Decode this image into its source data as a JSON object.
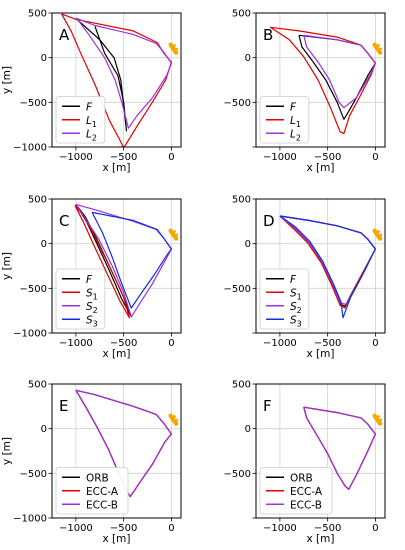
{
  "figure": {
    "colors": {
      "black": "#000000",
      "red": "#e00000",
      "purple": "#a030e0",
      "blue": "#1030e0",
      "orange": "#f5a800"
    }
  },
  "chart_data": [
    {
      "panel": "A",
      "type": "line",
      "xlabel": "x [m]",
      "ylabel": "y [m]",
      "xlim": [
        -1250,
        100
      ],
      "ylim": [
        -1000,
        500
      ],
      "xticks": [
        -1000,
        -500,
        0
      ],
      "xticklabels": [
        "−1000",
        "−500",
        "0"
      ],
      "yticks": [
        -1000,
        -500,
        0,
        500
      ],
      "yticklabels": [
        "−1000",
        "−500",
        "0",
        "500"
      ],
      "grid": true,
      "legend_position": "lower-left",
      "y_label_shown": true,
      "series": [
        {
          "name": "F",
          "color": "#000000",
          "label_base": "F",
          "label_sub": "",
          "x": [
            -1000,
            -750,
            -600,
            -530,
            -470,
            -500,
            -560,
            -700,
            -800
          ],
          "y": [
            440,
            200,
            0,
            -250,
            -820,
            -500,
            -200,
            50,
            350
          ]
        },
        {
          "name": "L1",
          "color": "#e00000",
          "label_base": "L",
          "label_sub": "1",
          "x": [
            -1150,
            -1050,
            -950,
            -800,
            -650,
            -540,
            -500,
            -350,
            -200,
            -60,
            0,
            -80,
            -150,
            -400,
            -1000,
            -1150
          ],
          "y": [
            490,
            300,
            50,
            -300,
            -700,
            -920,
            -1010,
            -750,
            -500,
            -250,
            -50,
            50,
            170,
            300,
            430,
            490
          ]
        },
        {
          "name": "L2",
          "color": "#a030e0",
          "label_base": "L",
          "label_sub": "2",
          "x": [
            -990,
            -860,
            -700,
            -590,
            -520,
            -450,
            -360,
            -200,
            -50,
            0,
            -80,
            -160,
            -400,
            -800,
            -990
          ],
          "y": [
            440,
            250,
            0,
            -250,
            -500,
            -790,
            -650,
            -450,
            -200,
            -60,
            60,
            160,
            260,
            360,
            440
          ]
        }
      ],
      "marker": "orange ship icon near (0, 0)"
    },
    {
      "panel": "B",
      "type": "line",
      "xlabel": "x [m]",
      "ylabel": "",
      "xlim": [
        -1250,
        100
      ],
      "ylim": [
        -1000,
        500
      ],
      "xticks": [
        -1000,
        -500,
        0
      ],
      "xticklabels": [
        "−1000",
        "−500",
        "0"
      ],
      "yticks": [
        -1000,
        -500,
        0,
        500
      ],
      "yticklabels": [
        "",
        "−500",
        "0",
        "500"
      ],
      "grid": true,
      "legend_position": "lower-left",
      "y_label_shown": false,
      "series": [
        {
          "name": "F",
          "color": "#000000",
          "label_base": "F",
          "label_sub": "",
          "x": [
            -800,
            -770,
            -650,
            -520,
            -400,
            -330,
            -280,
            -200,
            -80,
            0,
            -80,
            -150,
            -400,
            -800
          ],
          "y": [
            250,
            120,
            -50,
            -250,
            -500,
            -690,
            -600,
            -450,
            -200,
            -60,
            50,
            140,
            200,
            250
          ]
        },
        {
          "name": "L1",
          "color": "#e00000",
          "label_base": "L",
          "label_sub": "1",
          "x": [
            -1100,
            -900,
            -750,
            -600,
            -470,
            -370,
            -330,
            -270,
            -170,
            -40,
            0,
            -80,
            -150,
            -400,
            -800,
            -1100
          ],
          "y": [
            340,
            200,
            10,
            -250,
            -560,
            -830,
            -850,
            -650,
            -450,
            -180,
            -60,
            50,
            140,
            230,
            300,
            340
          ]
        },
        {
          "name": "L2",
          "color": "#a030e0",
          "label_base": "L",
          "label_sub": "2",
          "x": [
            -750,
            -720,
            -600,
            -480,
            -380,
            -330,
            -200,
            -50,
            0,
            -80,
            -150,
            -400,
            -750
          ],
          "y": [
            250,
            120,
            -50,
            -250,
            -500,
            -560,
            -450,
            -180,
            -60,
            50,
            140,
            200,
            250
          ]
        }
      ],
      "marker": "orange ship icon near (0, 0)"
    },
    {
      "panel": "C",
      "type": "line",
      "xlabel": "x [m]",
      "ylabel": "y [m]",
      "xlim": [
        -1250,
        100
      ],
      "ylim": [
        -1000,
        500
      ],
      "xticks": [
        -1000,
        -500,
        0
      ],
      "xticklabels": [
        "−1000",
        "−500",
        "0"
      ],
      "yticks": [
        -1000,
        -500,
        0,
        500
      ],
      "yticklabels": [
        "−1000",
        "−500",
        "0",
        "500"
      ],
      "grid": true,
      "legend_position": "lower-left",
      "y_label_shown": true,
      "series": [
        {
          "name": "F",
          "color": "#000000",
          "label_base": "F",
          "label_sub": "",
          "x": [
            -1000,
            -890,
            -780,
            -650,
            -520,
            -420,
            -500,
            -650,
            -780,
            -900,
            -1000
          ],
          "y": [
            440,
            250,
            0,
            -300,
            -620,
            -820,
            -600,
            -250,
            50,
            300,
            440
          ]
        },
        {
          "name": "S1",
          "color": "#e00000",
          "label_base": "S",
          "label_sub": "1",
          "x": [
            -1010,
            -920,
            -810,
            -680,
            -540,
            -440,
            -500,
            -650,
            -790,
            -910,
            -1010
          ],
          "y": [
            430,
            240,
            -20,
            -320,
            -640,
            -830,
            -600,
            -250,
            50,
            300,
            430
          ]
        },
        {
          "name": "S2",
          "color": "#a030e0",
          "label_base": "S",
          "label_sub": "2",
          "x": [
            -1000,
            -900,
            -760,
            -620,
            -500,
            -420,
            -320,
            -200,
            -60,
            0,
            -80,
            -160,
            -400,
            -800,
            -1000
          ],
          "y": [
            440,
            280,
            50,
            -250,
            -550,
            -820,
            -650,
            -450,
            -180,
            -60,
            60,
            160,
            250,
            380,
            440
          ]
        },
        {
          "name": "S3",
          "color": "#1030e0",
          "label_base": "S",
          "label_sub": "3",
          "x": [
            -830,
            -720,
            -620,
            -520,
            -420,
            -300,
            -180,
            -50,
            0,
            -80,
            -150,
            -400,
            -830
          ],
          "y": [
            350,
            120,
            -150,
            -450,
            -720,
            -530,
            -350,
            -130,
            -60,
            60,
            160,
            260,
            350
          ]
        }
      ],
      "marker": "orange ship icon near (0, 0)"
    },
    {
      "panel": "D",
      "type": "line",
      "xlabel": "x [m]",
      "ylabel": "",
      "xlim": [
        -1250,
        100
      ],
      "ylim": [
        -1000,
        500
      ],
      "xticks": [
        -1000,
        -500,
        0
      ],
      "xticklabels": [
        "−1000",
        "−500",
        "0"
      ],
      "yticks": [
        -1000,
        -500,
        0,
        500
      ],
      "yticklabels": [
        "",
        "−500",
        "0",
        "500"
      ],
      "grid": true,
      "legend_position": "lower-left",
      "y_label_shown": false,
      "series": [
        {
          "name": "F",
          "color": "#000000",
          "label_base": "F",
          "label_sub": "",
          "x": [
            -1000,
            -850,
            -700,
            -560,
            -450,
            -360,
            -320,
            -220,
            -120,
            0,
            -80,
            -150,
            -400,
            -700,
            -1000
          ],
          "y": [
            310,
            180,
            20,
            -200,
            -450,
            -680,
            -700,
            -500,
            -300,
            -60,
            50,
            120,
            200,
            260,
            310
          ]
        },
        {
          "name": "S1",
          "color": "#e00000",
          "label_base": "S",
          "label_sub": "1",
          "x": [
            -1000,
            -860,
            -710,
            -570,
            -460,
            -370,
            -320,
            -220,
            -120,
            0,
            -80,
            -150,
            -400,
            -700,
            -1000
          ],
          "y": [
            310,
            170,
            10,
            -210,
            -460,
            -690,
            -720,
            -500,
            -300,
            -60,
            50,
            120,
            200,
            260,
            310
          ]
        },
        {
          "name": "S2",
          "color": "#a030e0",
          "label_base": "S",
          "label_sub": "2",
          "x": [
            -1000,
            -850,
            -700,
            -560,
            -450,
            -370,
            -310,
            -210,
            -110,
            0,
            -80,
            -150,
            -400,
            -700,
            -1000
          ],
          "y": [
            310,
            180,
            20,
            -200,
            -450,
            -660,
            -680,
            -500,
            -300,
            -60,
            50,
            120,
            200,
            260,
            310
          ]
        },
        {
          "name": "S3",
          "color": "#1030e0",
          "label_base": "S",
          "label_sub": "3",
          "x": [
            -1000,
            -840,
            -690,
            -550,
            -440,
            -360,
            -340,
            -260,
            -150,
            -40,
            0,
            -80,
            -150,
            -400,
            -700,
            -1000
          ],
          "y": [
            310,
            190,
            30,
            -200,
            -450,
            -650,
            -830,
            -600,
            -380,
            -140,
            -60,
            50,
            120,
            200,
            260,
            310
          ]
        }
      ],
      "marker": "orange ship icon near (0, 0)"
    },
    {
      "panel": "E",
      "type": "line",
      "xlabel": "x [m]",
      "ylabel": "y [m]",
      "xlim": [
        -1250,
        100
      ],
      "ylim": [
        -1000,
        500
      ],
      "xticks": [
        -1000,
        -500,
        0
      ],
      "xticklabels": [
        "−1000",
        "−500",
        "0"
      ],
      "yticks": [
        -1000,
        -500,
        0,
        500
      ],
      "yticklabels": [
        "−1000",
        "−500",
        "0",
        "500"
      ],
      "grid": true,
      "legend_position": "lower-left",
      "y_label_shown": true,
      "series": [
        {
          "name": "ORB",
          "color": "#000000",
          "label_base": "ORB",
          "label_sub": "",
          "x": [
            -1000,
            -900,
            -780,
            -660,
            -560,
            -470,
            -430,
            -330,
            -200,
            -70,
            0,
            -80,
            -160,
            -400,
            -800,
            -1000
          ],
          "y": [
            430,
            250,
            20,
            -230,
            -480,
            -700,
            -760,
            -600,
            -400,
            -150,
            -60,
            60,
            160,
            250,
            380,
            430
          ]
        },
        {
          "name": "ECC-A",
          "color": "#e00000",
          "label_base": "ECC-A",
          "label_sub": "",
          "x": [
            -1000,
            -900,
            -780,
            -660,
            -560,
            -470,
            -430,
            -330,
            -200,
            -70,
            0,
            -80,
            -160,
            -400,
            -800,
            -1000
          ],
          "y": [
            430,
            250,
            20,
            -230,
            -480,
            -700,
            -760,
            -600,
            -400,
            -150,
            -60,
            60,
            160,
            250,
            380,
            430
          ]
        },
        {
          "name": "ECC-B",
          "color": "#a030e0",
          "label_base": "ECC-B",
          "label_sub": "",
          "x": [
            -1000,
            -900,
            -780,
            -660,
            -560,
            -470,
            -430,
            -330,
            -200,
            -70,
            0,
            -80,
            -160,
            -400,
            -800,
            -1000
          ],
          "y": [
            430,
            250,
            20,
            -230,
            -480,
            -700,
            -760,
            -600,
            -400,
            -150,
            -60,
            60,
            160,
            250,
            380,
            430
          ]
        }
      ],
      "marker": "orange ship icon near (0, 0)"
    },
    {
      "panel": "F",
      "type": "line",
      "xlabel": "x [m]",
      "ylabel": "",
      "xlim": [
        -1250,
        100
      ],
      "ylim": [
        -1000,
        500
      ],
      "xticks": [
        -1000,
        -500,
        0
      ],
      "xticklabels": [
        "−1000",
        "−500",
        "0"
      ],
      "yticks": [
        -1000,
        -500,
        0,
        500
      ],
      "yticklabels": [
        "",
        "−500",
        "0",
        "500"
      ],
      "grid": true,
      "legend_position": "lower-left",
      "y_label_shown": false,
      "series": [
        {
          "name": "ORB",
          "color": "#000000",
          "label_base": "ORB",
          "label_sub": "",
          "x": [
            -750,
            -720,
            -620,
            -500,
            -400,
            -320,
            -280,
            -200,
            -80,
            0,
            -80,
            -150,
            -400,
            -750
          ],
          "y": [
            240,
            120,
            -60,
            -280,
            -500,
            -640,
            -680,
            -520,
            -250,
            -60,
            50,
            120,
            180,
            240
          ]
        },
        {
          "name": "ECC-A",
          "color": "#e00000",
          "label_base": "ECC-A",
          "label_sub": "",
          "x": [
            -750,
            -720,
            -620,
            -500,
            -400,
            -320,
            -280,
            -200,
            -80,
            0,
            -80,
            -150,
            -400,
            -750
          ],
          "y": [
            240,
            120,
            -60,
            -280,
            -500,
            -640,
            -680,
            -520,
            -250,
            -60,
            50,
            120,
            180,
            240
          ]
        },
        {
          "name": "ECC-B",
          "color": "#a030e0",
          "label_base": "ECC-B",
          "label_sub": "",
          "x": [
            -750,
            -720,
            -620,
            -500,
            -400,
            -320,
            -280,
            -200,
            -80,
            0,
            -80,
            -150,
            -400,
            -750
          ],
          "y": [
            240,
            120,
            -60,
            -280,
            -500,
            -640,
            -680,
            -520,
            -250,
            -60,
            50,
            120,
            180,
            240
          ]
        }
      ],
      "marker": "orange ship icon near (0, 0)"
    }
  ]
}
